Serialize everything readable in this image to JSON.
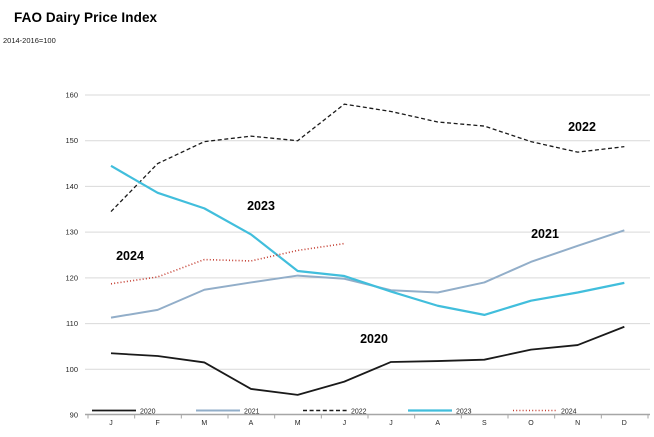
{
  "header": {
    "title": "FAO Dairy Price Index",
    "subtitle": "2014-2016=100"
  },
  "chart_data": {
    "type": "line",
    "title": "FAO Dairy Price Index",
    "subtitle": "2014-2016=100",
    "x_labels": [
      "J",
      "F",
      "M",
      "A",
      "M",
      "J",
      "J",
      "A",
      "S",
      "O",
      "N",
      "D"
    ],
    "ylim": [
      90,
      160
    ],
    "y_ticks": [
      90,
      100,
      110,
      120,
      130,
      140,
      150,
      160
    ],
    "grid": true,
    "legend_position": "bottom",
    "series": [
      {
        "name": "2020",
        "color": "#1a1a1a",
        "style": "solid",
        "width": 1.8,
        "values": [
          103.5,
          102.9,
          101.5,
          95.7,
          94.4,
          97.3,
          101.6,
          101.8,
          102.1,
          104.3,
          105.3,
          109.3
        ]
      },
      {
        "name": "2021",
        "color": "#92AEC9",
        "style": "solid",
        "width": 2,
        "values": [
          111.3,
          113.0,
          117.4,
          119.0,
          120.5,
          119.8,
          117.3,
          116.8,
          119.0,
          123.5,
          127.0,
          130.4
        ]
      },
      {
        "name": "2022",
        "color": "#1a1a1a",
        "style": "dashed",
        "width": 1.3,
        "values": [
          134.5,
          145.0,
          149.8,
          151.0,
          150.0,
          158.0,
          156.4,
          154.1,
          153.2,
          149.8,
          147.5,
          148.7
        ]
      },
      {
        "name": "2023",
        "color": "#41BEDC",
        "style": "solid",
        "width": 2.2,
        "values": [
          144.5,
          138.6,
          135.2,
          129.5,
          121.5,
          120.4,
          117.0,
          113.9,
          111.9,
          115.0,
          116.8,
          118.9
        ]
      },
      {
        "name": "2024",
        "color": "#C33B2E",
        "style": "dotted",
        "width": 1.6,
        "values": [
          118.7,
          120.2,
          124.0,
          123.7,
          126.0,
          127.5
        ]
      }
    ],
    "annotations": [
      {
        "label": "2022",
        "x": 582,
        "y": 131
      },
      {
        "label": "2023",
        "x": 261,
        "y": 210
      },
      {
        "label": "2021",
        "x": 545,
        "y": 238
      },
      {
        "label": "2024",
        "x": 130,
        "y": 260
      },
      {
        "label": "2020",
        "x": 374,
        "y": 343
      }
    ],
    "axis_color": "#a6a6a6",
    "grid_color": "#d9d9d9",
    "tick_label_color": "#262626"
  }
}
